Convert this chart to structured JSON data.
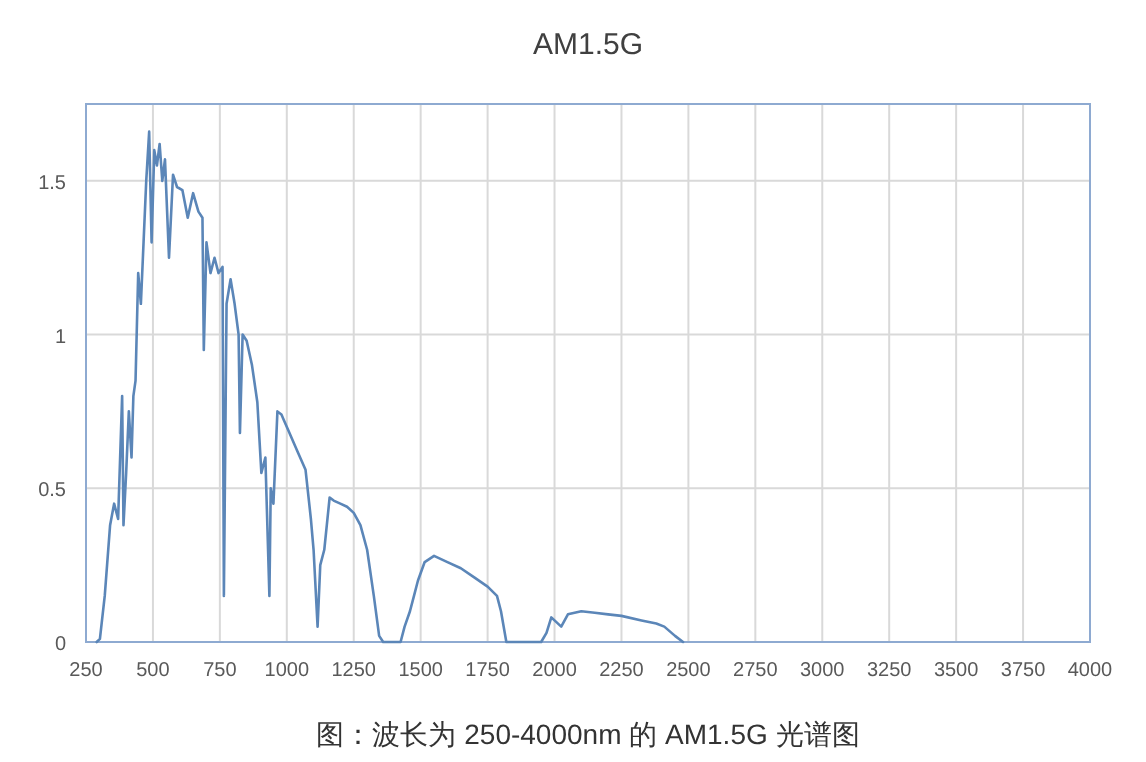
{
  "chart_data": {
    "type": "line",
    "title": "AM1.5G",
    "x": [
      290,
      302,
      320,
      340,
      355,
      370,
      385,
      390,
      400,
      410,
      420,
      427,
      435,
      445,
      455,
      465,
      475,
      486,
      495,
      505,
      515,
      525,
      535,
      545,
      560,
      575,
      590,
      610,
      630,
      650,
      670,
      685,
      690,
      700,
      715,
      730,
      745,
      760,
      765,
      775,
      790,
      805,
      820,
      825,
      835,
      850,
      870,
      890,
      905,
      920,
      935,
      940,
      950,
      965,
      980,
      990,
      1010,
      1040,
      1070,
      1090,
      1100,
      1115,
      1125,
      1140,
      1160,
      1175,
      1200,
      1225,
      1250,
      1275,
      1300,
      1325,
      1345,
      1360,
      1425,
      1440,
      1460,
      1475,
      1490,
      1515,
      1550,
      1600,
      1650,
      1700,
      1750,
      1785,
      1800,
      1820,
      1950,
      1970,
      1988,
      2025,
      2050,
      2100,
      2150,
      2200,
      2250,
      2325,
      2380,
      2410,
      2450,
      2480
    ],
    "values": [
      0,
      0.01,
      0.15,
      0.38,
      0.45,
      0.4,
      0.8,
      0.38,
      0.55,
      0.75,
      0.6,
      0.8,
      0.85,
      1.2,
      1.1,
      1.3,
      1.5,
      1.66,
      1.3,
      1.6,
      1.55,
      1.62,
      1.5,
      1.57,
      1.25,
      1.52,
      1.48,
      1.47,
      1.38,
      1.46,
      1.4,
      1.38,
      0.95,
      1.3,
      1.2,
      1.25,
      1.2,
      1.22,
      0.15,
      1.1,
      1.18,
      1.1,
      1.0,
      0.68,
      1.0,
      0.98,
      0.9,
      0.78,
      0.55,
      0.6,
      0.15,
      0.5,
      0.45,
      0.75,
      0.74,
      0.72,
      0.68,
      0.62,
      0.56,
      0.4,
      0.3,
      0.05,
      0.25,
      0.3,
      0.47,
      0.46,
      0.45,
      0.44,
      0.42,
      0.38,
      0.3,
      0.15,
      0.02,
      0,
      0,
      0.05,
      0.1,
      0.15,
      0.2,
      0.26,
      0.28,
      0.26,
      0.24,
      0.21,
      0.18,
      0.15,
      0.1,
      0,
      0,
      0.03,
      0.08,
      0.05,
      0.09,
      0.1,
      0.095,
      0.09,
      0.085,
      0.07,
      0.06,
      0.05,
      0.02,
      0
    ],
    "color": "#5b86b8",
    "xlim": [
      250,
      4000
    ],
    "ylim": [
      0,
      1.75
    ],
    "xticks": [
      250,
      500,
      750,
      1000,
      1250,
      1500,
      1750,
      2000,
      2250,
      2500,
      2750,
      3000,
      3250,
      3500,
      3750,
      4000
    ],
    "yticks": [
      0,
      0.5,
      1,
      1.5
    ],
    "grid": true,
    "annotations": [
      "图：波长为 250-4000nm 的 AM1.5G 光谱图"
    ]
  }
}
